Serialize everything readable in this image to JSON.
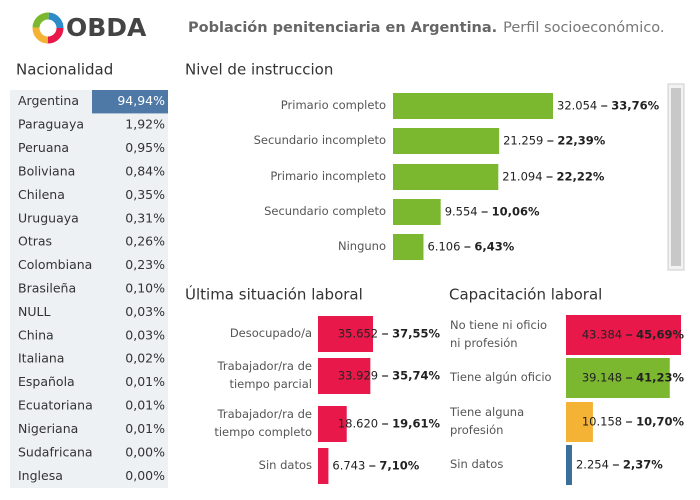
{
  "header": {
    "logo": "OBDA",
    "title": "Población penitenciaria en Argentina.",
    "subtitle": "Perfil socioeconómico."
  },
  "table": {
    "title": "Nacionalidad",
    "rows": [
      [
        "Argentina",
        "94,94%"
      ],
      [
        "Paraguaya",
        "1,92%"
      ],
      [
        "Peruana",
        "0,95%"
      ],
      [
        "Boliviana",
        "0,84%"
      ],
      [
        "Chilena",
        "0,35%"
      ],
      [
        "Uruguaya",
        "0,31%"
      ],
      [
        "Otras",
        "0,26%"
      ],
      [
        "Colombiana",
        "0,23%"
      ],
      [
        "Brasileña",
        "0,10%"
      ],
      [
        "NULL",
        "0,03%"
      ],
      [
        "China",
        "0,03%"
      ],
      [
        "Italiana",
        "0,02%"
      ],
      [
        "Española",
        "0,01%"
      ],
      [
        "Ecuatoriana",
        "0,01%"
      ],
      [
        "Nigeriana",
        "0,01%"
      ],
      [
        "Sudafricana",
        "0,00%"
      ],
      [
        "Inglesa",
        "0,00%"
      ]
    ]
  },
  "chart_data": [
    {
      "type": "bar",
      "title": "Nivel de instruccion",
      "categories": [
        "Primario completo",
        "Secundario incompleto",
        "Primario incompleto",
        "Secundario completo",
        "Ninguno"
      ],
      "values": [
        32054,
        21259,
        21094,
        9554,
        6106
      ],
      "value_labels": [
        "32.054",
        "21.259",
        "21.094",
        "9.554",
        "6.106"
      ],
      "percents": [
        33.76,
        22.39,
        22.22,
        10.06,
        6.43
      ],
      "percent_labels": [
        "33,76%",
        "22,39%",
        "22,22%",
        "10,06%",
        "6,43%"
      ],
      "color": "#7cb82f"
    },
    {
      "type": "bar",
      "title": "Última situación laboral",
      "categories": [
        "Desocupado/a",
        "Trabajador/ra de\ntiempo parcial",
        "Trabajador/ra de\ntiempo completo",
        "Sin datos"
      ],
      "values": [
        35652,
        33929,
        18620,
        6743
      ],
      "value_labels": [
        "35.652",
        "33.929",
        "18.620",
        "6.743"
      ],
      "percents": [
        37.55,
        35.74,
        19.61,
        7.1
      ],
      "percent_labels": [
        "37,55%",
        "35,74%",
        "19,61%",
        "7,10%"
      ],
      "color": "#e8194a"
    },
    {
      "type": "bar",
      "title": "Capacitación laboral",
      "categories": [
        "No tiene ni oficio\nni profesión",
        "Tiene algún oficio",
        "Tiene alguna\nprofesión",
        "Sin datos"
      ],
      "values": [
        43384,
        39148,
        10158,
        2254
      ],
      "value_labels": [
        "43.384",
        "39.148",
        "10.158",
        "2.254"
      ],
      "percents": [
        45.69,
        41.23,
        10.7,
        2.37
      ],
      "percent_labels": [
        "45,69%",
        "41,23%",
        "10,70%",
        "2,37%"
      ],
      "colors": [
        "#e8194a",
        "#7cb82f",
        "#f5b335",
        "#3a6f9a"
      ]
    }
  ]
}
